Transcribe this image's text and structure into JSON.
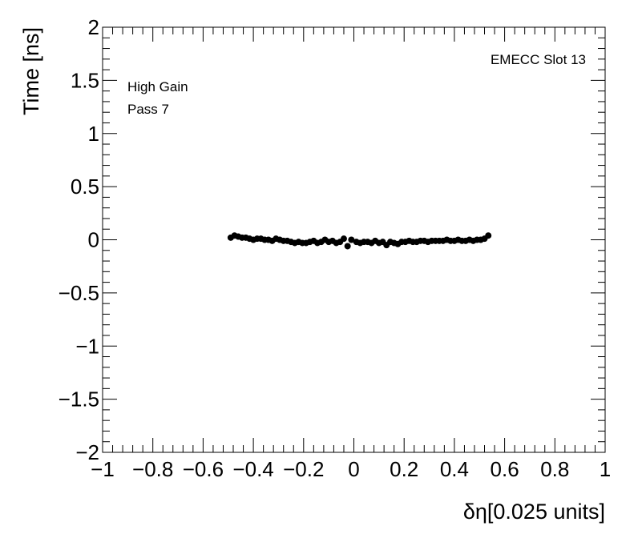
{
  "chart_data": {
    "type": "scatter",
    "xlabel": "δη[0.025 units]",
    "ylabel": "Time [ns]",
    "xlim": [
      -1,
      1
    ],
    "ylim": [
      -2,
      2
    ],
    "x_ticks": [
      -1,
      -0.8,
      -0.6,
      -0.4,
      -0.2,
      0,
      0.2,
      0.4,
      0.6,
      0.8,
      1
    ],
    "x_tick_labels": [
      "−1",
      "−0.8",
      "−0.6",
      "−0.4",
      "−0.2",
      "0",
      "0.2",
      "0.4",
      "0.6",
      "0.8",
      "1"
    ],
    "y_ticks": [
      -2,
      -1.5,
      -1,
      -0.5,
      0,
      0.5,
      1,
      1.5,
      2
    ],
    "y_tick_labels": [
      "−2",
      "−1.5",
      "−1",
      "−0.5",
      "0",
      "0.5",
      "1",
      "1.5",
      "2"
    ],
    "grid": false,
    "marker_color": "#000000",
    "annotations": {
      "top_right": "EMECC Slot 13",
      "top_left_line1": "High Gain",
      "top_left_line2": "Pass 7"
    },
    "points": [
      {
        "x": -0.49,
        "y": 0.02
      },
      {
        "x": -0.475,
        "y": 0.04
      },
      {
        "x": -0.46,
        "y": 0.03
      },
      {
        "x": -0.445,
        "y": 0.02
      },
      {
        "x": -0.43,
        "y": 0.02
      },
      {
        "x": -0.415,
        "y": 0.01
      },
      {
        "x": -0.4,
        "y": 0.0
      },
      {
        "x": -0.385,
        "y": 0.01
      },
      {
        "x": -0.37,
        "y": 0.01
      },
      {
        "x": -0.355,
        "y": 0.0
      },
      {
        "x": -0.34,
        "y": 0.0
      },
      {
        "x": -0.325,
        "y": -0.01
      },
      {
        "x": -0.31,
        "y": 0.01
      },
      {
        "x": -0.295,
        "y": 0.0
      },
      {
        "x": -0.28,
        "y": -0.01
      },
      {
        "x": -0.265,
        "y": -0.01
      },
      {
        "x": -0.25,
        "y": -0.02
      },
      {
        "x": -0.235,
        "y": -0.03
      },
      {
        "x": -0.22,
        "y": -0.02
      },
      {
        "x": -0.205,
        "y": -0.03
      },
      {
        "x": -0.19,
        "y": -0.03
      },
      {
        "x": -0.175,
        "y": -0.02
      },
      {
        "x": -0.16,
        "y": -0.01
      },
      {
        "x": -0.145,
        "y": -0.03
      },
      {
        "x": -0.13,
        "y": -0.02
      },
      {
        "x": -0.115,
        "y": 0.0
      },
      {
        "x": -0.1,
        "y": -0.02
      },
      {
        "x": -0.085,
        "y": -0.01
      },
      {
        "x": -0.07,
        "y": -0.03
      },
      {
        "x": -0.055,
        "y": -0.02
      },
      {
        "x": -0.04,
        "y": 0.01
      },
      {
        "x": -0.025,
        "y": -0.06
      },
      {
        "x": -0.01,
        "y": 0.0
      },
      {
        "x": 0.01,
        "y": -0.02
      },
      {
        "x": 0.025,
        "y": -0.03
      },
      {
        "x": 0.04,
        "y": -0.02
      },
      {
        "x": 0.055,
        "y": -0.02
      },
      {
        "x": 0.07,
        "y": -0.03
      },
      {
        "x": 0.085,
        "y": -0.01
      },
      {
        "x": 0.1,
        "y": -0.03
      },
      {
        "x": 0.115,
        "y": -0.02
      },
      {
        "x": 0.13,
        "y": -0.05
      },
      {
        "x": 0.145,
        "y": -0.02
      },
      {
        "x": 0.16,
        "y": -0.03
      },
      {
        "x": 0.175,
        "y": -0.04
      },
      {
        "x": 0.19,
        "y": -0.02
      },
      {
        "x": 0.205,
        "y": -0.02
      },
      {
        "x": 0.22,
        "y": -0.01
      },
      {
        "x": 0.235,
        "y": -0.02
      },
      {
        "x": 0.25,
        "y": -0.02
      },
      {
        "x": 0.265,
        "y": -0.01
      },
      {
        "x": 0.28,
        "y": -0.01
      },
      {
        "x": 0.295,
        "y": -0.02
      },
      {
        "x": 0.31,
        "y": -0.01
      },
      {
        "x": 0.325,
        "y": -0.01
      },
      {
        "x": 0.34,
        "y": -0.01
      },
      {
        "x": 0.355,
        "y": -0.01
      },
      {
        "x": 0.37,
        "y": 0.0
      },
      {
        "x": 0.385,
        "y": -0.01
      },
      {
        "x": 0.4,
        "y": -0.01
      },
      {
        "x": 0.415,
        "y": 0.0
      },
      {
        "x": 0.43,
        "y": -0.01
      },
      {
        "x": 0.445,
        "y": -0.01
      },
      {
        "x": 0.46,
        "y": 0.0
      },
      {
        "x": 0.475,
        "y": -0.01
      },
      {
        "x": 0.49,
        "y": 0.0
      },
      {
        "x": 0.505,
        "y": 0.0
      },
      {
        "x": 0.52,
        "y": 0.01
      },
      {
        "x": 0.535,
        "y": 0.04
      }
    ]
  }
}
